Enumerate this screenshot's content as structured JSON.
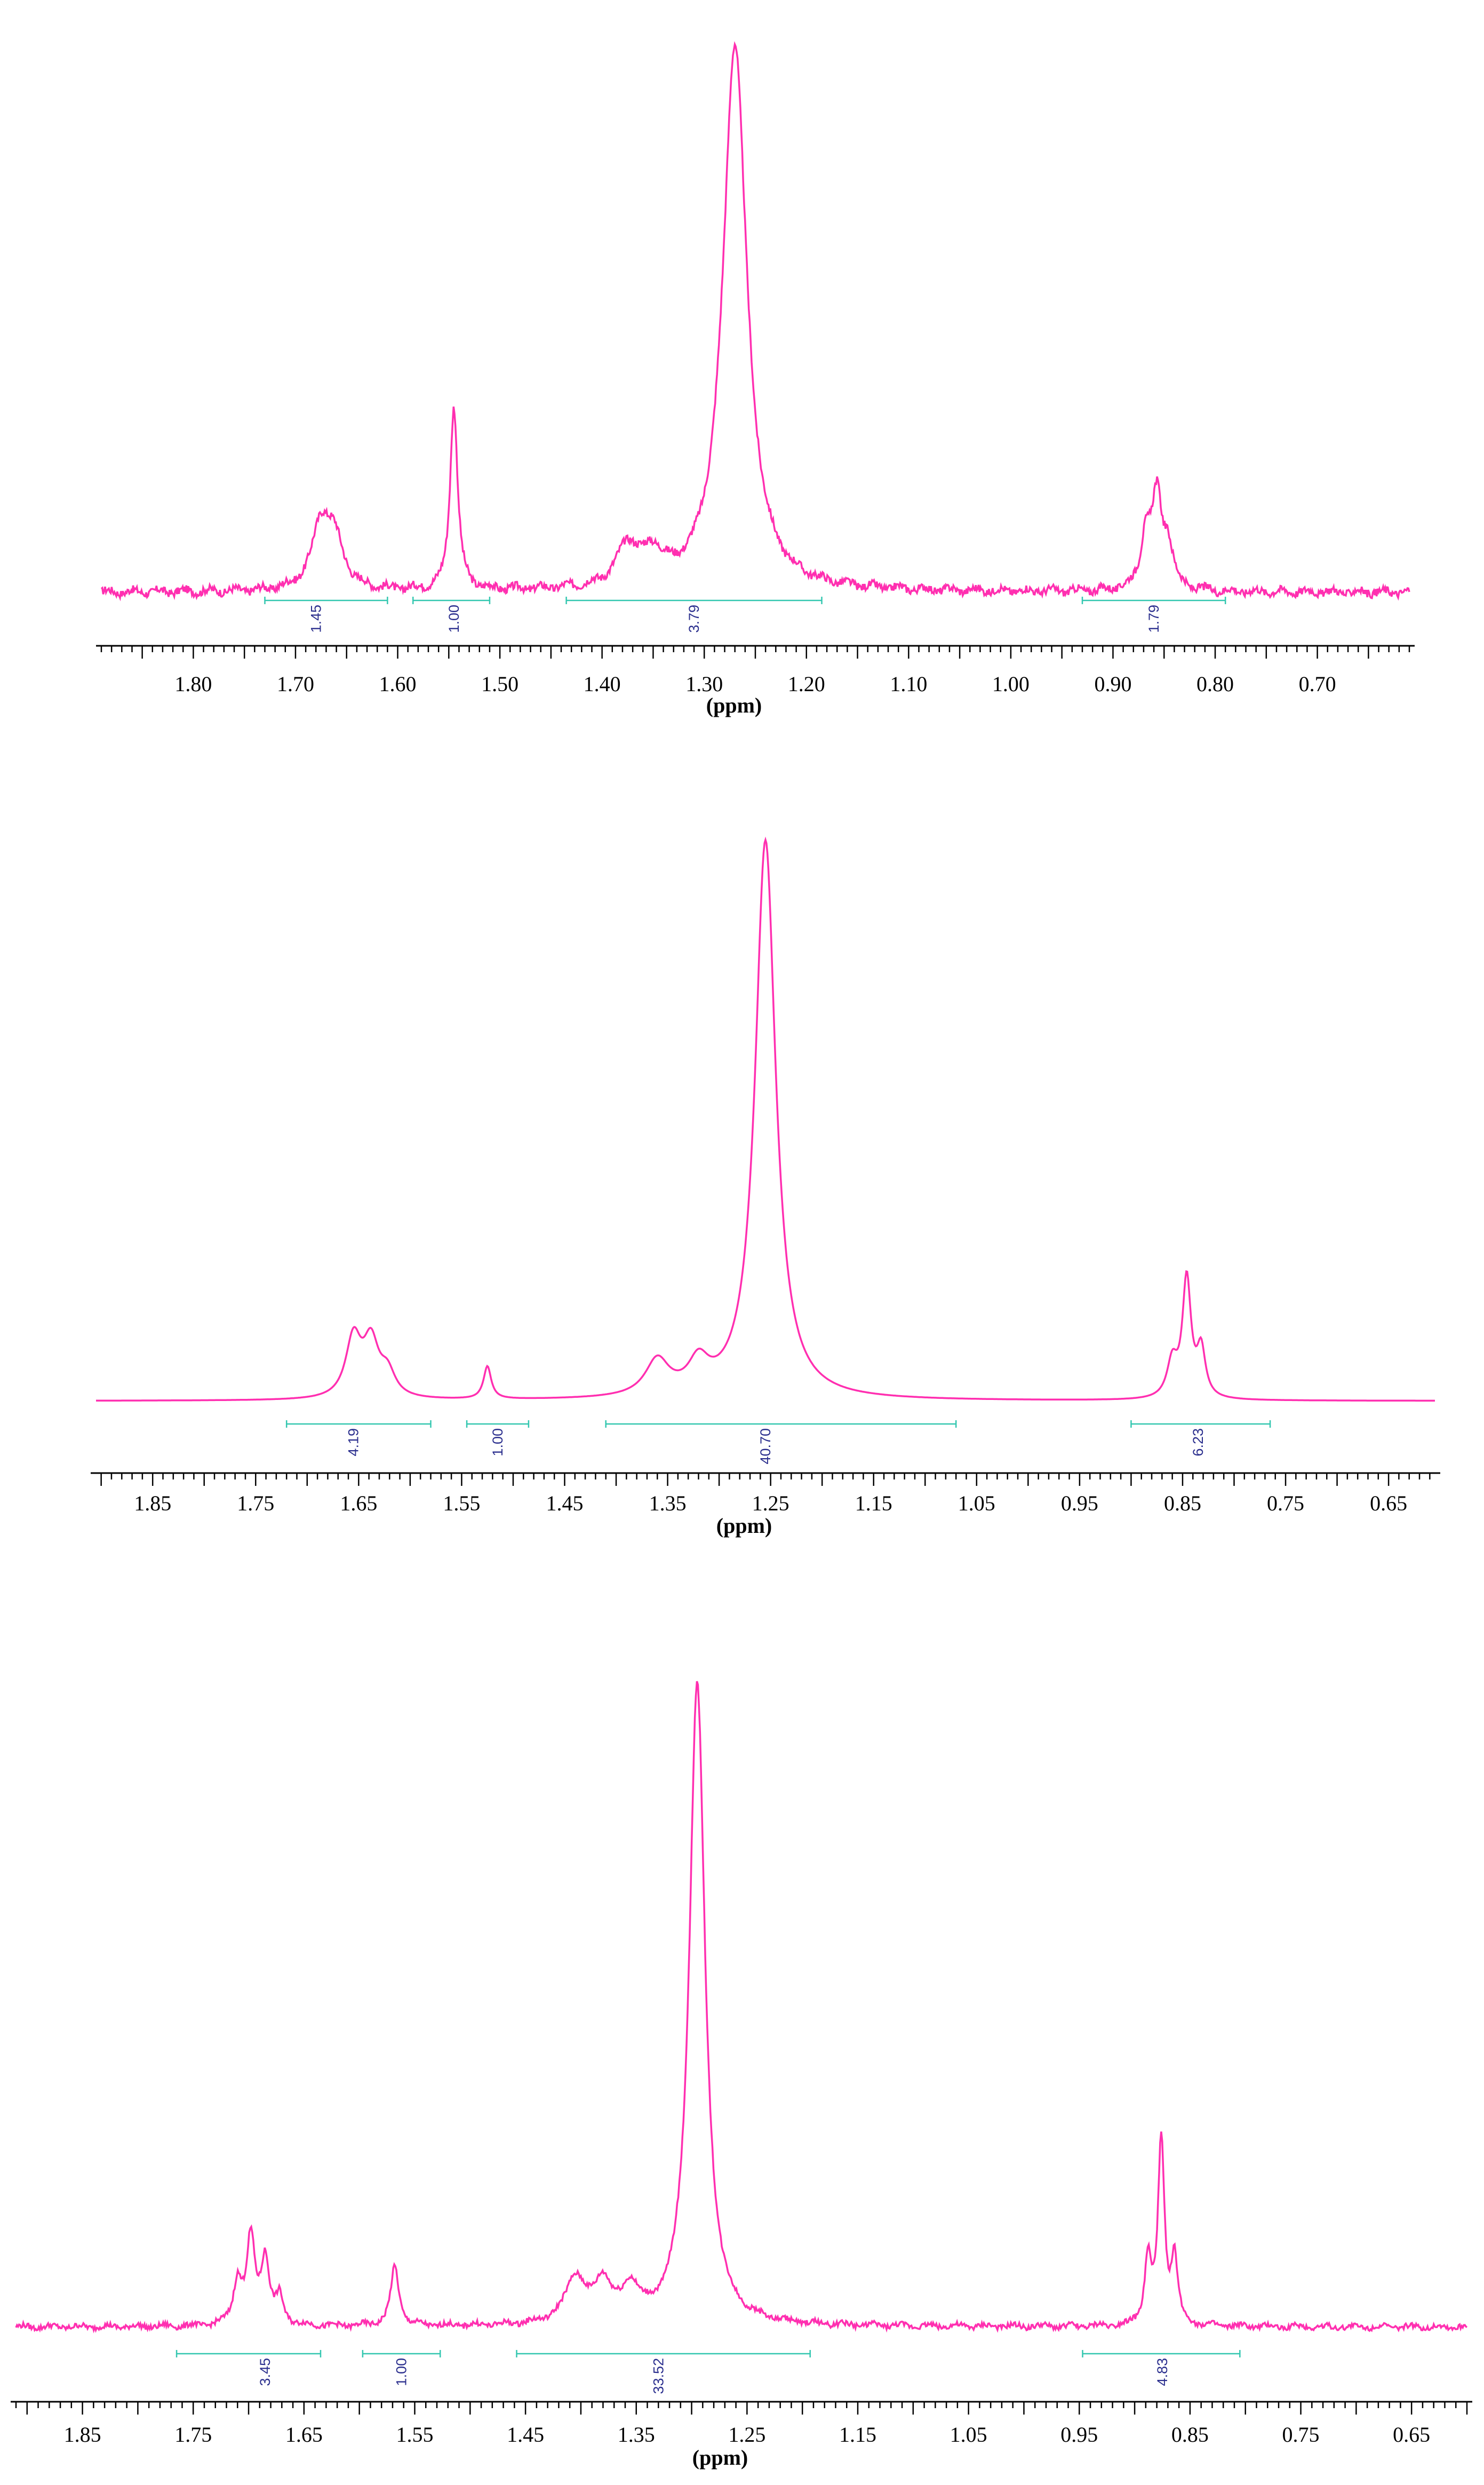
{
  "colors": {
    "spectrum": "#ff2fb0",
    "integral_bracket": "#34c7b0",
    "integral_value": "#2b2f8e",
    "axis": "#000000"
  },
  "chart_data": [
    {
      "type": "line",
      "xlabel": "(ppm)",
      "xlim": [
        1.89,
        0.61
      ],
      "x_reversed": true,
      "ylim": [
        0,
        1
      ],
      "grid": false,
      "tick_labels": [
        "1.80",
        "1.70",
        "1.60",
        "1.50",
        "1.40",
        "1.30",
        "1.20",
        "1.10",
        "1.00",
        "0.90",
        "0.80",
        "0.70"
      ],
      "peaks": [
        {
          "ppm": 1.675,
          "height": 0.11,
          "width": 0.011
        },
        {
          "ppm": 1.662,
          "height": 0.08,
          "width": 0.011
        },
        {
          "ppm": 1.545,
          "height": 0.33,
          "width": 0.0045
        },
        {
          "ppm": 1.375,
          "height": 0.07,
          "width": 0.013
        },
        {
          "ppm": 1.35,
          "height": 0.05,
          "width": 0.013
        },
        {
          "ppm": 1.27,
          "height": 0.98,
          "width": 0.014
        },
        {
          "ppm": 0.868,
          "height": 0.09,
          "width": 0.006
        },
        {
          "ppm": 0.857,
          "height": 0.16,
          "width": 0.006
        },
        {
          "ppm": 0.846,
          "height": 0.07,
          "width": 0.006
        }
      ],
      "noise": 0.007,
      "integrals": [
        {
          "label": "1.45",
          "from": 1.73,
          "to": 1.61,
          "label_ppm": 1.68
        },
        {
          "label": "1.00",
          "from": 1.585,
          "to": 1.51,
          "label_ppm": 1.545
        },
        {
          "label": "3.79",
          "from": 1.435,
          "to": 1.185,
          "label_ppm": 1.31
        },
        {
          "label": "1.79",
          "from": 0.93,
          "to": 0.79,
          "label_ppm": 0.86
        }
      ]
    },
    {
      "type": "line",
      "xlabel": "(ppm)",
      "xlim": [
        1.905,
        0.605
      ],
      "x_reversed": true,
      "ylim": [
        0,
        1
      ],
      "grid": false,
      "tick_labels": [
        "1.85",
        "1.75",
        "1.65",
        "1.55",
        "1.45",
        "1.35",
        "1.25",
        "1.15",
        "1.05",
        "0.95",
        "0.85",
        "0.75",
        "0.65"
      ],
      "peaks": [
        {
          "ppm": 1.655,
          "height": 0.1,
          "width": 0.009
        },
        {
          "ppm": 1.638,
          "height": 0.09,
          "width": 0.009
        },
        {
          "ppm": 1.622,
          "height": 0.04,
          "width": 0.009
        },
        {
          "ppm": 1.525,
          "height": 0.055,
          "width": 0.0045
        },
        {
          "ppm": 1.36,
          "height": 0.06,
          "width": 0.014
        },
        {
          "ppm": 1.32,
          "height": 0.05,
          "width": 0.012
        },
        {
          "ppm": 1.255,
          "height": 0.94,
          "width": 0.012
        },
        {
          "ppm": 0.86,
          "height": 0.06,
          "width": 0.006
        },
        {
          "ppm": 0.846,
          "height": 0.2,
          "width": 0.005
        },
        {
          "ppm": 0.832,
          "height": 0.08,
          "width": 0.005
        }
      ],
      "noise": 0,
      "integrals": [
        {
          "label": "4.19",
          "from": 1.72,
          "to": 1.58,
          "label_ppm": 1.655
        },
        {
          "label": "1.00",
          "from": 1.545,
          "to": 1.485,
          "label_ppm": 1.515
        },
        {
          "label": "40.70",
          "from": 1.41,
          "to": 1.07,
          "label_ppm": 1.255
        },
        {
          "label": "6.23",
          "from": 0.9,
          "to": 0.765,
          "label_ppm": 0.835
        }
      ]
    },
    {
      "type": "line",
      "xlabel": "(ppm)",
      "xlim": [
        1.91,
        0.6
      ],
      "x_reversed": true,
      "ylim": [
        0,
        1
      ],
      "grid": false,
      "tick_labels": [
        "1.85",
        "1.75",
        "1.65",
        "1.55",
        "1.45",
        "1.35",
        "1.25",
        "1.15",
        "1.05",
        "0.95",
        "0.85",
        "0.75",
        "0.65"
      ],
      "peaks": [
        {
          "ppm": 1.71,
          "height": 0.065,
          "width": 0.0045
        },
        {
          "ppm": 1.698,
          "height": 0.13,
          "width": 0.0045
        },
        {
          "ppm": 1.685,
          "height": 0.1,
          "width": 0.0045
        },
        {
          "ppm": 1.672,
          "height": 0.04,
          "width": 0.004
        },
        {
          "ppm": 1.568,
          "height": 0.09,
          "width": 0.0045
        },
        {
          "ppm": 1.405,
          "height": 0.07,
          "width": 0.011
        },
        {
          "ppm": 1.38,
          "height": 0.06,
          "width": 0.009
        },
        {
          "ppm": 1.355,
          "height": 0.05,
          "width": 0.009
        },
        {
          "ppm": 1.295,
          "height": 0.98,
          "width": 0.0085
        },
        {
          "ppm": 0.888,
          "height": 0.1,
          "width": 0.0035
        },
        {
          "ppm": 0.876,
          "height": 0.28,
          "width": 0.0035
        },
        {
          "ppm": 0.864,
          "height": 0.1,
          "width": 0.0035
        }
      ],
      "noise": 0.004,
      "integrals": [
        {
          "label": "3.45",
          "from": 1.765,
          "to": 1.635,
          "label_ppm": 1.685
        },
        {
          "label": "1.00",
          "from": 1.597,
          "to": 1.527,
          "label_ppm": 1.562
        },
        {
          "label": "33.52",
          "from": 1.458,
          "to": 1.193,
          "label_ppm": 1.33
        },
        {
          "label": "4.83",
          "from": 0.947,
          "to": 0.805,
          "label_ppm": 0.875
        }
      ]
    }
  ]
}
